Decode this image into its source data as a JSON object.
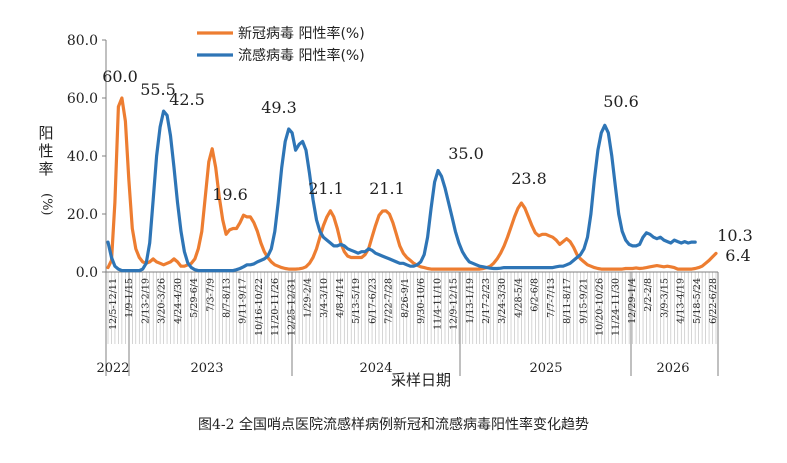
{
  "caption": "图4-2 全国哨点医院流感样病例新冠和流感病毒阳性率变化趋势",
  "colors": {
    "covid": "#ED7D31",
    "flu": "#2E75B6",
    "axis": "#808080",
    "text": "#222222"
  },
  "chart_data": {
    "type": "line",
    "title": "",
    "ylabel": "阳性率(%)",
    "xlabel": "采样日期",
    "ylim": [
      0,
      80
    ],
    "yticks": [
      "0.0",
      "20.0",
      "40.0",
      "60.0",
      "80.0"
    ],
    "legend_position": "top",
    "x_tick_labels": [
      "12/5-12/11",
      "1/9-1/15",
      "2/13-2/19",
      "3/20-3/26",
      "4/24-4/30",
      "5/29-6/4",
      "7/3-7/9",
      "8/7-8/13",
      "9/11-9/17",
      "10/16-10/22",
      "11/20-11/26",
      "12/25-12/31",
      "1/29-2/4",
      "3/4-3/10",
      "4/8-4/14",
      "5/13-5/19",
      "6/17-6/23",
      "7/22-7/28",
      "8/26-9/1",
      "9/30-10/6",
      "11/4-11/10",
      "12/9-12/15",
      "1/13-1/19",
      "2/17-2/23",
      "3/24-3/30",
      "4/28-5/4",
      "6/2-6/8",
      "7/7-7/13",
      "8/11-8/17",
      "9/15-9/21",
      "10/20-10/26",
      "11/24-11/30",
      "12/29-1/4",
      "2/2-2/8",
      "3/9-3/15",
      "4/13-4/19",
      "5/18-5/24",
      "6/22-6/28"
    ],
    "years": [
      "2022",
      "2023",
      "2024",
      "2025",
      "2026"
    ],
    "annotations": [
      "60.0",
      "55.5",
      "42.5",
      "19.6",
      "49.3",
      "21.1",
      "21.1",
      "35.0",
      "23.8",
      "50.6",
      "10.3",
      "6.4"
    ],
    "series": [
      {
        "name": "新冠病毒 阳性率(%)",
        "color": "#ED7D31",
        "values": [
          1.5,
          4.0,
          24.0,
          57.0,
          60.0,
          52.0,
          32.0,
          15.0,
          8.0,
          5.0,
          3.5,
          3.0,
          3.5,
          4.5,
          3.5,
          3.0,
          2.5,
          3.0,
          3.5,
          4.5,
          3.5,
          2.0,
          2.0,
          2.5,
          3.0,
          4.5,
          8.0,
          14.0,
          26.0,
          38.0,
          42.5,
          36.0,
          26.0,
          18.0,
          13.0,
          14.5,
          15.0,
          15.0,
          17.0,
          19.6,
          19.0,
          19.0,
          17.0,
          14.0,
          10.0,
          7.0,
          5.0,
          3.5,
          2.5,
          2.0,
          1.5,
          1.2,
          1.0,
          1.0,
          1.0,
          1.1,
          1.3,
          1.8,
          3.0,
          5.0,
          8.0,
          12.0,
          16.0,
          19.0,
          21.1,
          19.0,
          15.0,
          10.0,
          7.0,
          5.5,
          5.0,
          5.0,
          5.0,
          5.0,
          6.0,
          8.0,
          12.0,
          16.0,
          19.5,
          21.0,
          21.1,
          20.0,
          17.0,
          13.0,
          9.0,
          6.5,
          5.0,
          4.0,
          3.0,
          2.3,
          1.8,
          1.5,
          1.2,
          1.0,
          1.0,
          1.0,
          1.0,
          1.0,
          1.0,
          1.0,
          1.0,
          1.0,
          1.0,
          1.0,
          1.0,
          1.0,
          1.0,
          1.0,
          1.2,
          1.5,
          2.0,
          3.0,
          4.5,
          6.5,
          9.0,
          12.0,
          15.5,
          19.0,
          22.0,
          23.8,
          22.0,
          19.0,
          16.0,
          13.5,
          12.5,
          13.0,
          13.0,
          12.5,
          12.0,
          11.0,
          9.5,
          10.5,
          11.5,
          10.5,
          8.5,
          6.0,
          4.5,
          3.5,
          2.5,
          2.0,
          1.5,
          1.2,
          1.0,
          1.0,
          1.0,
          1.0,
          1.0,
          1.0,
          1.0,
          1.2,
          1.2,
          1.2,
          1.4,
          1.2,
          1.3,
          1.5,
          1.8,
          2.0,
          2.2,
          2.0,
          1.8,
          2.0,
          1.8,
          1.5,
          1.0,
          1.0,
          1.0,
          1.0,
          1.0,
          1.2,
          1.5,
          2.0,
          3.0,
          4.0,
          5.2,
          6.4
        ]
      },
      {
        "name": "流感病毒 阳性率(%)",
        "color": "#2E75B6",
        "values": [
          10.3,
          5.0,
          2.0,
          1.0,
          0.5,
          0.5,
          0.5,
          0.5,
          0.5,
          0.5,
          1.0,
          3.0,
          10.0,
          25.0,
          40.0,
          50.0,
          55.5,
          54.0,
          47.0,
          36.0,
          24.0,
          14.0,
          7.0,
          3.0,
          1.5,
          0.8,
          0.5,
          0.5,
          0.5,
          0.5,
          0.5,
          0.5,
          0.5,
          0.5,
          0.5,
          0.5,
          0.5,
          0.8,
          1.2,
          1.8,
          2.5,
          2.5,
          2.8,
          3.5,
          4.0,
          4.5,
          5.5,
          8.0,
          14.0,
          24.0,
          36.0,
          45.0,
          49.3,
          48.0,
          42.0,
          44.0,
          45.0,
          42.0,
          34.0,
          25.0,
          18.0,
          14.0,
          12.0,
          11.0,
          10.0,
          9.0,
          9.0,
          9.5,
          9.0,
          8.0,
          7.5,
          7.0,
          6.5,
          7.0,
          7.0,
          8.0,
          7.5,
          6.5,
          6.0,
          5.5,
          5.0,
          4.5,
          4.0,
          3.5,
          3.0,
          3.0,
          2.5,
          2.0,
          2.0,
          2.5,
          3.5,
          6.0,
          12.0,
          22.0,
          31.0,
          35.0,
          33.0,
          29.0,
          24.0,
          19.0,
          14.0,
          10.0,
          7.0,
          5.0,
          3.5,
          3.0,
          2.5,
          2.0,
          1.8,
          1.5,
          1.3,
          1.2,
          1.2,
          1.3,
          1.5,
          1.5,
          1.5,
          1.5,
          1.5,
          1.5,
          1.5,
          1.5,
          1.5,
          1.5,
          1.5,
          1.5,
          1.5,
          1.5,
          1.5,
          1.8,
          2.0,
          2.0,
          2.5,
          3.0,
          4.0,
          5.0,
          6.0,
          8.0,
          12.0,
          20.0,
          32.0,
          42.0,
          48.0,
          50.6,
          48.0,
          40.0,
          30.0,
          20.0,
          14.0,
          11.0,
          9.5,
          9.0,
          9.0,
          9.5,
          12.0,
          13.5,
          13.0,
          12.0,
          11.5,
          12.0,
          11.0,
          10.5,
          10.0,
          11.0,
          10.5,
          10.0,
          10.5,
          10.0,
          10.3,
          10.3
        ]
      }
    ]
  }
}
